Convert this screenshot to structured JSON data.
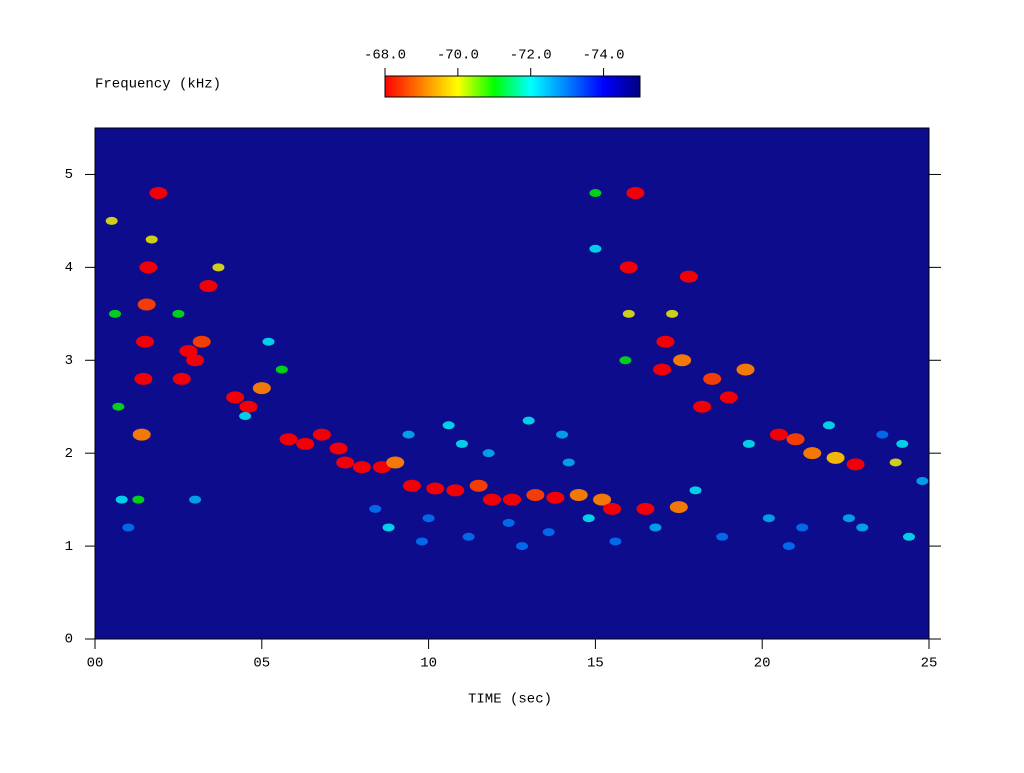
{
  "chart_data": {
    "type": "spectrogram",
    "ylabel": "Frequency (kHz)",
    "xlabel": "TIME (sec)",
    "xlim": [
      0,
      25
    ],
    "ylim": [
      0,
      5.5
    ],
    "xticks": [
      {
        "value": 0,
        "label": "00"
      },
      {
        "value": 5,
        "label": "05"
      },
      {
        "value": 10,
        "label": "10"
      },
      {
        "value": 15,
        "label": "15"
      },
      {
        "value": 20,
        "label": "20"
      },
      {
        "value": 25,
        "label": "25"
      }
    ],
    "yticks": [
      0,
      1,
      2,
      3,
      4,
      5
    ],
    "clim": [
      -68,
      -75
    ],
    "cticks": [
      {
        "value": -68,
        "label": "-68.0"
      },
      {
        "value": -70,
        "label": "-70.0"
      },
      {
        "value": -72,
        "label": "-72.0"
      },
      {
        "value": -74,
        "label": "-74.0"
      }
    ],
    "colormap": [
      "#ff0000",
      "#ff8000",
      "#ffff00",
      "#00ff00",
      "#00ffff",
      "#0080ff",
      "#0000ff",
      "#000080"
    ],
    "background": "#0c0c8c",
    "x": [
      1.3,
      1.4,
      1.45,
      1.5,
      1.55,
      1.6,
      1.7,
      1.9,
      0.5,
      0.6,
      0.7,
      0.8,
      2.6,
      2.8,
      3.0,
      3.2,
      3.4,
      3.7,
      2.5,
      4.2,
      4.6,
      5.0,
      5.6,
      5.2,
      5.8,
      6.3,
      6.8,
      7.3,
      7.5,
      8.0,
      8.6,
      9.0,
      9.5,
      10.2,
      10.8,
      11.5,
      11.9,
      12.5,
      13.2,
      13.8,
      14.5,
      15.2,
      15.5,
      16.5,
      17.5,
      15.0,
      15.0,
      15.9,
      16.0,
      16.2,
      16.0,
      17.0,
      17.1,
      17.3,
      17.8,
      17.6,
      18.2,
      18.5,
      19.0,
      19.5,
      20.5,
      21.0,
      21.5,
      22.2,
      22.8,
      24.0,
      8.8,
      9.4,
      10.0,
      10.6,
      11.2,
      11.8,
      12.4,
      13.0,
      13.6,
      14.2,
      14.8,
      16.8,
      18.8,
      19.6,
      20.2,
      21.2,
      22.0,
      23.0,
      23.6,
      24.4,
      24.8,
      8.4,
      9.8,
      11.0,
      12.8,
      14.0,
      15.6,
      18.0,
      20.8,
      22.6,
      24.2,
      4.5,
      3.0,
      1.0
    ],
    "y": [
      1.5,
      2.2,
      2.8,
      3.2,
      3.6,
      4.0,
      4.3,
      4.8,
      4.5,
      3.5,
      2.5,
      1.5,
      2.8,
      3.1,
      3.0,
      3.2,
      3.8,
      4.0,
      3.5,
      2.6,
      2.5,
      2.7,
      2.9,
      3.2,
      2.15,
      2.1,
      2.2,
      2.05,
      1.9,
      1.85,
      1.85,
      1.9,
      1.65,
      1.62,
      1.6,
      1.65,
      1.5,
      1.5,
      1.55,
      1.52,
      1.55,
      1.5,
      1.4,
      1.4,
      1.42,
      4.8,
      4.2,
      3.0,
      4.0,
      4.8,
      3.5,
      2.9,
      3.2,
      3.5,
      3.9,
      3.0,
      2.5,
      2.8,
      2.6,
      2.9,
      2.2,
      2.15,
      2.0,
      1.95,
      1.88,
      1.9,
      1.2,
      2.2,
      1.3,
      2.3,
      1.1,
      2.0,
      1.25,
      2.35,
      1.15,
      1.9,
      1.3,
      1.2,
      1.1,
      2.1,
      1.3,
      1.2,
      2.3,
      1.2,
      2.2,
      1.1,
      1.7,
      1.4,
      1.05,
      2.1,
      1.0,
      2.2,
      1.05,
      1.6,
      1.0,
      1.3,
      2.1,
      2.4,
      1.5,
      1.2
    ],
    "values": [
      -71,
      -69,
      -68,
      -68,
      -68.5,
      -68,
      -70,
      -68,
      -70,
      -71,
      -71,
      -72,
      -68,
      -68,
      -68,
      -68.5,
      -68,
      -70,
      -71,
      -68,
      -68,
      -69,
      -71,
      -72,
      -68,
      -68,
      -68,
      -68,
      -68,
      -68,
      -68,
      -69,
      -68,
      -68,
      -68,
      -68.5,
      -68,
      -68,
      -68.5,
      -68,
      -69,
      -69,
      -68,
      -68,
      -69,
      -71,
      -72,
      -71,
      -68,
      -68,
      -70,
      -68,
      -68,
      -70,
      -68,
      -69,
      -68,
      -68.5,
      -68,
      -69,
      -68,
      -68.5,
      -69,
      -69.5,
      -68,
      -70,
      -72,
      -72.5,
      -73,
      -72,
      -73,
      -72.5,
      -73,
      -72,
      -73,
      -72.5,
      -72,
      -72.5,
      -73,
      -72,
      -72.5,
      -73,
      -72,
      -72.5,
      -73,
      -72,
      -72.5,
      -73,
      -73,
      -72,
      -73,
      -72.5,
      -73,
      -72,
      -73,
      -72.5,
      -72,
      -72,
      -72.5,
      -73
    ]
  }
}
